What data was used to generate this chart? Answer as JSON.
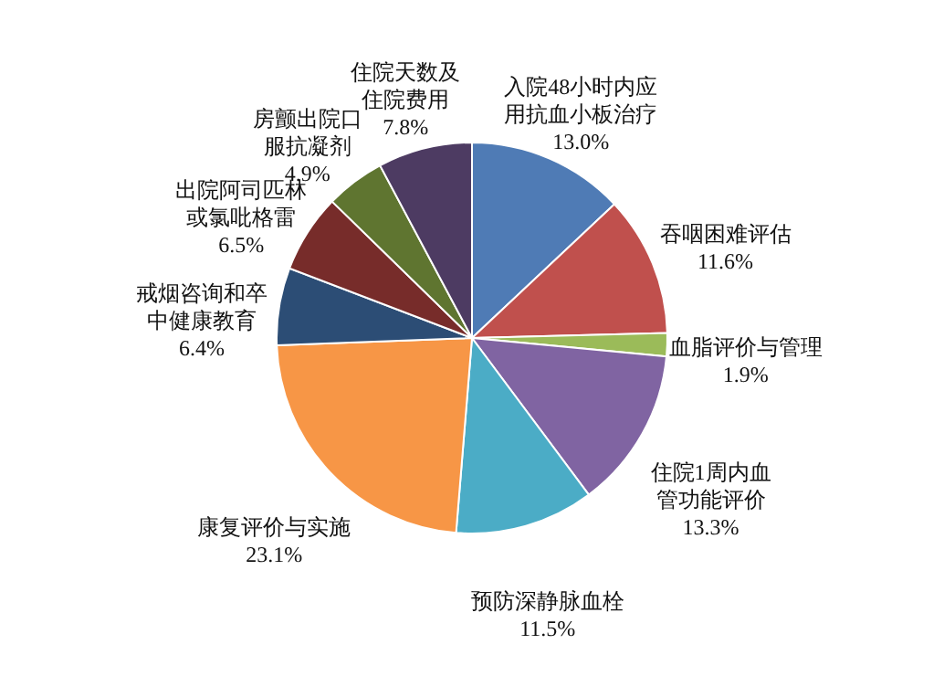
{
  "chart_data": {
    "type": "pie",
    "categories": [
      "入院48小时内应用抗血小板治疗",
      "吞咽困难评估",
      "血脂评价与管理",
      "住院1周内血管功能评价",
      "预防深静脉血栓",
      "康复评价与实施",
      "戒烟咨询和卒中健康教育",
      "出院阿司匹林或氯吡格雷",
      "房颤出院口服抗凝剂",
      "住院天数及住院费用"
    ],
    "values": [
      13.0,
      11.6,
      1.9,
      13.3,
      11.5,
      23.1,
      6.4,
      6.5,
      4.9,
      7.8
    ],
    "value_labels": [
      "13.0%",
      "11.6%",
      "1.9%",
      "13.3%",
      "11.5%",
      "23.1%",
      "6.4%",
      "6.5%",
      "4.9%",
      "7.8%"
    ],
    "colors": [
      "#4f7bb5",
      "#c0504d",
      "#9bbb59",
      "#8064a2",
      "#4bacc6",
      "#f79646",
      "#2c4d75",
      "#772c2a",
      "#5f7530",
      "#4d3b62"
    ]
  }
}
